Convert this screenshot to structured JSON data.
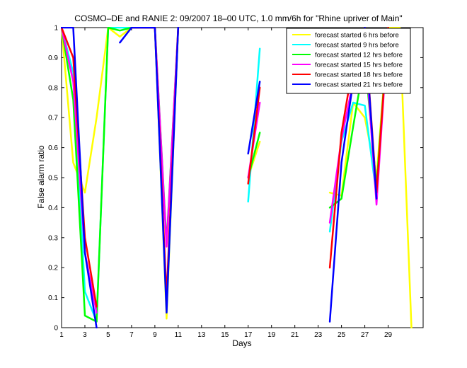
{
  "chart_data": {
    "type": "line",
    "title": "COSMO–DE and RANIE 2: 09/2007 18–00 UTC, 1.0 mm/6h for \"Rhine upriver of Main\"",
    "xlabel": "Days",
    "ylabel": "False alarm ratio",
    "xlim": [
      1,
      32
    ],
    "ylim": [
      0,
      1
    ],
    "xticks": [
      "1",
      "3",
      "5",
      "7",
      "9",
      "11",
      "13",
      "15",
      "17",
      "19",
      "21",
      "23",
      "25",
      "27",
      "29"
    ],
    "yticks": [
      "0",
      "0.1",
      "0.2",
      "0.3",
      "0.4",
      "0.5",
      "0.6",
      "0.7",
      "0.8",
      "0.9",
      "1"
    ],
    "grid": false,
    "legend_position": "top-right",
    "series": [
      {
        "name": "forecast started 6 hrs before",
        "color": "#ffff00",
        "x": [
          1,
          2,
          3,
          4,
          5,
          6,
          7,
          8,
          9,
          10,
          11,
          12,
          13,
          14,
          15,
          16,
          17,
          18,
          19,
          20,
          21,
          22,
          23,
          24,
          25,
          26,
          27,
          28,
          29,
          30,
          31
        ],
        "y": [
          1,
          0.55,
          0.45,
          0.7,
          1,
          0.97,
          1,
          1,
          1,
          0.03,
          1,
          null,
          null,
          null,
          null,
          null,
          0.5,
          0.62,
          null,
          null,
          null,
          null,
          null,
          0.45,
          0.44,
          0.75,
          0.7,
          0.5,
          1,
          1,
          0
        ]
      },
      {
        "name": "forecast started 9 hrs before",
        "color": "#00ffff",
        "x": [
          1,
          2,
          3,
          4,
          5,
          6,
          7,
          8,
          9,
          10,
          11,
          12,
          13,
          14,
          15,
          16,
          17,
          18,
          19,
          20,
          21,
          22,
          23,
          24,
          25,
          26,
          27,
          28,
          29,
          30,
          31
        ],
        "y": [
          1,
          0.85,
          0.12,
          0.02,
          1,
          1,
          1,
          1,
          1,
          0.05,
          1,
          null,
          null,
          null,
          null,
          null,
          0.42,
          0.93,
          null,
          null,
          null,
          null,
          null,
          0.32,
          0.62,
          0.75,
          0.74,
          0.44,
          1,
          null,
          null
        ]
      },
      {
        "name": "forecast started 12 hrs before",
        "color": "#00ff00",
        "x": [
          1,
          2,
          3,
          4,
          5,
          6,
          7,
          8,
          9,
          10,
          11,
          12,
          13,
          14,
          15,
          16,
          17,
          18,
          19,
          20,
          21,
          22,
          23,
          24,
          25,
          26,
          27,
          28,
          29,
          30,
          31
        ],
        "y": [
          1,
          0.76,
          0.04,
          0.02,
          1,
          0.99,
          1,
          1,
          1,
          0.28,
          1,
          null,
          null,
          null,
          null,
          null,
          0.5,
          0.65,
          null,
          null,
          null,
          null,
          null,
          0.4,
          0.43,
          0.67,
          0.9,
          0.47,
          1,
          null,
          null
        ]
      },
      {
        "name": "forecast started 15 hrs before",
        "color": "#ff00ff",
        "x": [
          1,
          2,
          3,
          4,
          5,
          6,
          7,
          8,
          9,
          10,
          11,
          12,
          13,
          14,
          15,
          16,
          17,
          18,
          19,
          20,
          21,
          22,
          23,
          24,
          25,
          26,
          27,
          28,
          29,
          30,
          31
        ],
        "y": [
          1,
          0.82,
          0.25,
          0.05,
          null,
          null,
          1,
          1,
          1,
          0.27,
          1,
          null,
          null,
          null,
          null,
          null,
          0.5,
          0.75,
          null,
          null,
          null,
          null,
          null,
          0.35,
          0.63,
          0.82,
          0.96,
          0.41,
          1,
          null,
          null
        ]
      },
      {
        "name": "forecast started 18 hrs before",
        "color": "#ff0000",
        "x": [
          1,
          2,
          3,
          4,
          5,
          6,
          7,
          8,
          9,
          10,
          11,
          12,
          13,
          14,
          15,
          16,
          17,
          18,
          19,
          20,
          21,
          22,
          23,
          24,
          25,
          26,
          27,
          28,
          29,
          30,
          31
        ],
        "y": [
          1,
          0.9,
          0.3,
          0.07,
          null,
          null,
          1,
          1,
          1,
          0.1,
          1,
          null,
          null,
          null,
          null,
          null,
          0.48,
          0.8,
          null,
          null,
          null,
          null,
          null,
          0.2,
          0.65,
          0.88,
          1,
          0.45,
          1,
          null,
          null
        ]
      },
      {
        "name": "forecast started 21 hrs before",
        "color": "#0000ff",
        "x": [
          1,
          2,
          3,
          4,
          5,
          6,
          7,
          8,
          9,
          10,
          11,
          12,
          13,
          14,
          15,
          16,
          17,
          18,
          19,
          20,
          21,
          22,
          23,
          24,
          25,
          26,
          27,
          28,
          29,
          30,
          31
        ],
        "y": [
          1,
          1,
          0.25,
          0,
          null,
          0.95,
          1,
          1,
          1,
          0.05,
          1,
          null,
          null,
          null,
          null,
          null,
          0.58,
          0.82,
          null,
          null,
          null,
          null,
          null,
          0.02,
          0.55,
          0.82,
          1,
          0.43,
          null,
          null,
          null
        ]
      }
    ]
  }
}
